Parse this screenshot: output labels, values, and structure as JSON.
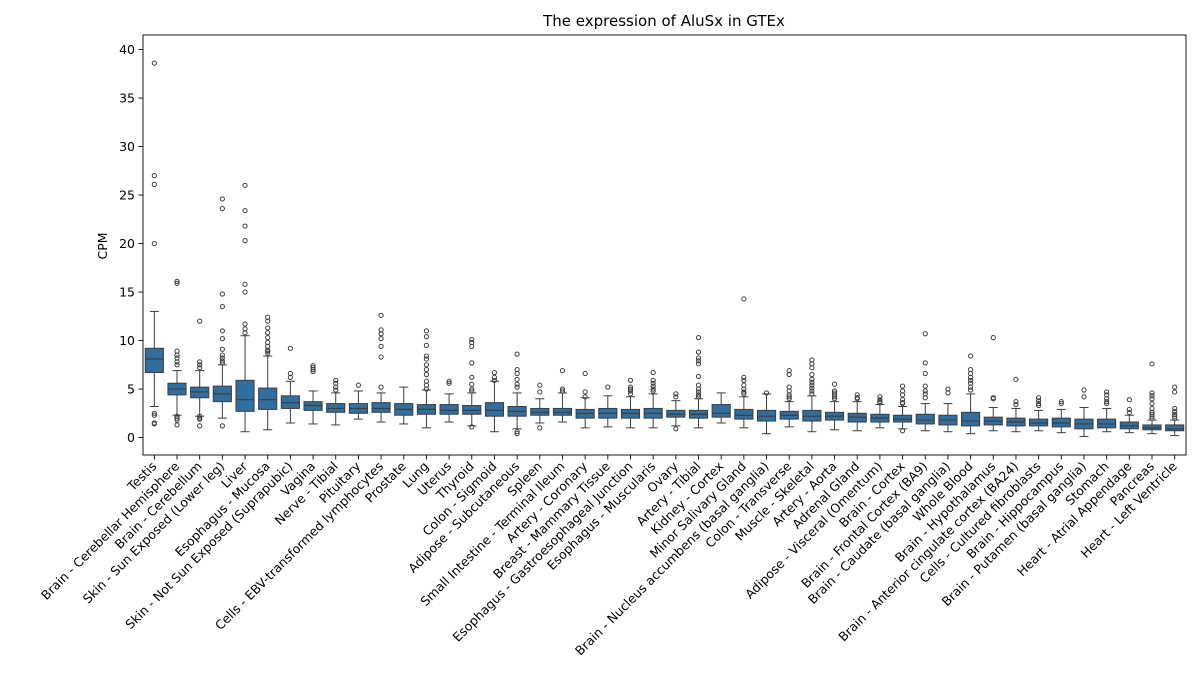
{
  "chart_data": {
    "type": "box",
    "title": "The expression of AluSx in GTEx",
    "xlabel": "",
    "ylabel": "CPM",
    "ylim": [
      -1.8,
      41.5
    ],
    "yticks": [
      0,
      5,
      10,
      15,
      20,
      25,
      30,
      35,
      40
    ],
    "box_color": "#2f6e9e",
    "categories": [
      "Testis",
      "Brain - Cerebellar Hemisphere",
      "Brain - Cerebellum",
      "Skin - Sun Exposed (Lower leg)",
      "Liver",
      "Esophagus - Mucosa",
      "Skin - Not Sun Exposed (Suprapubic)",
      "Vagina",
      "Nerve - Tibial",
      "Pituitary",
      "Cells - EBV-transformed lymphocytes",
      "Prostate",
      "Lung",
      "Uterus",
      "Thyroid",
      "Colon - Sigmoid",
      "Adipose - Subcutaneous",
      "Spleen",
      "Small Intestine - Terminal Ileum",
      "Artery - Coronary",
      "Breast - Mammary Tissue",
      "Esophagus - Gastroesophageal Junction",
      "Esophagus - Muscularis",
      "Ovary",
      "Artery - Tibial",
      "Kidney - Cortex",
      "Minor Salivary Gland",
      "Brain - Nucleus accumbens (basal ganglia)",
      "Colon - Transverse",
      "Muscle - Skeletal",
      "Artery - Aorta",
      "Adrenal Gland",
      "Adipose - Visceral (Omentum)",
      "Brain - Cortex",
      "Brain - Frontal Cortex (BA9)",
      "Brain - Caudate (basal ganglia)",
      "Whole Blood",
      "Brain - Hypothalamus",
      "Brain - Anterior cingulate cortex (BA24)",
      "Cells - Cultured fibroblasts",
      "Brain - Hippocampus",
      "Brain - Putamen (basal ganglia)",
      "Stomach",
      "Heart - Atrial Appendage",
      "Pancreas",
      "Heart - Left Ventricle"
    ],
    "boxes": [
      {
        "whislo": 3.2,
        "q1": 6.7,
        "med": 8.1,
        "q3": 9.2,
        "whishi": 13.0,
        "fliers": [
          38.6,
          27.0,
          26.1,
          20.0,
          2.5,
          2.3,
          1.5,
          1.4
        ]
      },
      {
        "whislo": 2.3,
        "q1": 4.4,
        "med": 5.0,
        "q3": 5.6,
        "whishi": 6.9,
        "fliers": [
          16.1,
          15.9,
          8.9,
          8.5,
          8.2,
          7.8,
          7.5,
          2.2,
          2.0,
          1.8,
          1.3
        ]
      },
      {
        "whislo": 2.2,
        "q1": 4.1,
        "med": 4.7,
        "q3": 5.2,
        "whishi": 6.9,
        "fliers": [
          12.0,
          7.8,
          7.5,
          7.2,
          2.2,
          2.0,
          1.9,
          1.2
        ]
      },
      {
        "whislo": 2.0,
        "q1": 3.7,
        "med": 4.5,
        "q3": 5.3,
        "whishi": 7.5,
        "fliers": [
          24.6,
          23.6,
          14.8,
          13.5,
          11.0,
          10.2,
          9.1,
          8.5,
          8.2,
          7.9,
          7.7,
          1.2
        ]
      },
      {
        "whislo": 0.6,
        "q1": 2.7,
        "med": 3.9,
        "q3": 5.9,
        "whishi": 10.5,
        "fliers": [
          26.0,
          23.4,
          21.8,
          20.3,
          15.8,
          15.0,
          11.7,
          11.2,
          10.8
        ]
      },
      {
        "whislo": 0.8,
        "q1": 2.9,
        "med": 3.9,
        "q3": 5.1,
        "whishi": 8.4,
        "fliers": [
          12.4,
          12.0,
          11.3,
          10.8,
          10.3,
          9.8,
          9.4,
          9.0,
          8.9,
          8.7
        ]
      },
      {
        "whislo": 1.5,
        "q1": 3.0,
        "med": 3.6,
        "q3": 4.3,
        "whishi": 5.8,
        "fliers": [
          9.2,
          6.6,
          6.2
        ]
      },
      {
        "whislo": 1.4,
        "q1": 2.8,
        "med": 3.3,
        "q3": 3.7,
        "whishi": 4.8,
        "fliers": [
          7.4,
          7.2,
          7.0,
          6.8
        ]
      },
      {
        "whislo": 1.3,
        "q1": 2.6,
        "med": 3.0,
        "q3": 3.5,
        "whishi": 4.6,
        "fliers": [
          5.9,
          5.6,
          5.2,
          4.9
        ]
      },
      {
        "whislo": 1.9,
        "q1": 2.5,
        "med": 3.0,
        "q3": 3.5,
        "whishi": 4.8,
        "fliers": [
          5.4
        ]
      },
      {
        "whislo": 1.6,
        "q1": 2.6,
        "med": 3.0,
        "q3": 3.6,
        "whishi": 4.6,
        "fliers": [
          12.6,
          11.1,
          10.7,
          10.2,
          9.4,
          8.3,
          5.2
        ]
      },
      {
        "whislo": 1.4,
        "q1": 2.3,
        "med": 2.9,
        "q3": 3.5,
        "whishi": 5.2,
        "fliers": []
      },
      {
        "whislo": 1.0,
        "q1": 2.4,
        "med": 2.9,
        "q3": 3.4,
        "whishi": 4.9,
        "fliers": [
          11.0,
          10.4,
          9.5,
          8.4,
          8.1,
          7.5,
          7.0,
          6.5,
          5.8,
          5.4,
          5.0
        ]
      },
      {
        "whislo": 1.6,
        "q1": 2.4,
        "med": 2.8,
        "q3": 3.4,
        "whishi": 4.5,
        "fliers": [
          5.8,
          5.6
        ]
      },
      {
        "whislo": 1.2,
        "q1": 2.4,
        "med": 2.8,
        "q3": 3.3,
        "whishi": 4.6,
        "fliers": [
          10.1,
          9.8,
          9.4,
          7.7,
          6.2,
          5.5,
          5.0,
          4.8,
          1.1
        ]
      },
      {
        "whislo": 0.6,
        "q1": 2.2,
        "med": 2.8,
        "q3": 3.6,
        "whishi": 5.8,
        "fliers": [
          6.7,
          6.2,
          5.9
        ]
      },
      {
        "whislo": 0.9,
        "q1": 2.2,
        "med": 2.7,
        "q3": 3.2,
        "whishi": 4.6,
        "fliers": [
          8.6,
          7.0,
          6.6,
          6.0,
          5.5,
          5.2,
          0.6,
          0.4
        ]
      },
      {
        "whislo": 1.5,
        "q1": 2.3,
        "med": 2.6,
        "q3": 3.0,
        "whishi": 4.0,
        "fliers": [
          5.4,
          4.7,
          1.0
        ]
      },
      {
        "whislo": 1.6,
        "q1": 2.3,
        "med": 2.6,
        "q3": 3.0,
        "whishi": 4.6,
        "fliers": [
          6.9,
          5.0,
          4.8
        ]
      },
      {
        "whislo": 1.0,
        "q1": 2.0,
        "med": 2.5,
        "q3": 2.9,
        "whishi": 4.1,
        "fliers": [
          6.6,
          4.7,
          4.2
        ]
      },
      {
        "whislo": 1.1,
        "q1": 2.0,
        "med": 2.5,
        "q3": 3.0,
        "whishi": 4.3,
        "fliers": [
          5.2
        ]
      },
      {
        "whislo": 1.0,
        "q1": 2.0,
        "med": 2.5,
        "q3": 2.9,
        "whishi": 4.2,
        "fliers": [
          5.9,
          5.2,
          5.0,
          4.8,
          4.5
        ]
      },
      {
        "whislo": 1.0,
        "q1": 2.0,
        "med": 2.5,
        "q3": 3.0,
        "whishi": 4.5,
        "fliers": [
          6.7,
          5.9,
          5.6,
          5.3,
          5.0,
          4.8
        ]
      },
      {
        "whislo": 1.2,
        "q1": 2.1,
        "med": 2.4,
        "q3": 2.8,
        "whishi": 3.8,
        "fliers": [
          4.5,
          4.2,
          0.9
        ]
      },
      {
        "whislo": 1.0,
        "q1": 2.0,
        "med": 2.4,
        "q3": 2.8,
        "whishi": 4.0,
        "fliers": [
          10.3,
          8.8,
          8.2,
          7.9,
          7.6,
          6.3,
          5.4,
          5.0,
          4.7,
          4.4,
          4.2
        ]
      },
      {
        "whislo": 1.5,
        "q1": 2.1,
        "med": 2.5,
        "q3": 3.4,
        "whishi": 4.6,
        "fliers": []
      },
      {
        "whislo": 1.0,
        "q1": 1.9,
        "med": 2.3,
        "q3": 2.9,
        "whishi": 4.2,
        "fliers": [
          14.3,
          6.2,
          5.9,
          5.4,
          5.0,
          4.7,
          4.5
        ]
      },
      {
        "whislo": 0.4,
        "q1": 1.7,
        "med": 2.2,
        "q3": 2.8,
        "whishi": 4.5,
        "fliers": [
          4.6
        ]
      },
      {
        "whislo": 1.1,
        "q1": 1.9,
        "med": 2.3,
        "q3": 2.7,
        "whishi": 3.7,
        "fliers": [
          6.9,
          6.5,
          5.2,
          4.8,
          4.4,
          4.2,
          4.0
        ]
      },
      {
        "whislo": 0.6,
        "q1": 1.7,
        "med": 2.2,
        "q3": 2.8,
        "whishi": 4.3,
        "fliers": [
          8.0,
          7.6,
          7.2,
          6.5,
          6.0,
          5.7,
          5.4,
          5.1,
          4.8,
          4.5
        ]
      },
      {
        "whislo": 0.8,
        "q1": 1.8,
        "med": 2.2,
        "q3": 2.6,
        "whishi": 3.7,
        "fliers": [
          5.5,
          4.8,
          4.6,
          4.4,
          4.2,
          4.0
        ]
      },
      {
        "whislo": 0.7,
        "q1": 1.6,
        "med": 2.1,
        "q3": 2.5,
        "whishi": 3.7,
        "fliers": [
          4.4,
          4.1,
          4.0
        ]
      },
      {
        "whislo": 1.0,
        "q1": 1.6,
        "med": 2.0,
        "q3": 2.4,
        "whishi": 3.4,
        "fliers": [
          4.2,
          3.9,
          3.7,
          3.6
        ]
      },
      {
        "whislo": 0.9,
        "q1": 1.6,
        "med": 1.9,
        "q3": 2.3,
        "whishi": 3.2,
        "fliers": [
          5.3,
          4.8,
          4.4,
          3.9,
          3.6,
          3.5,
          0.7
        ]
      },
      {
        "whislo": 0.7,
        "q1": 1.4,
        "med": 1.8,
        "q3": 2.4,
        "whishi": 3.5,
        "fliers": [
          10.7,
          7.7,
          6.6,
          5.3,
          4.8,
          4.5,
          4.1
        ]
      },
      {
        "whislo": 0.6,
        "q1": 1.3,
        "med": 1.8,
        "q3": 2.3,
        "whishi": 3.5,
        "fliers": [
          5.0,
          4.6
        ]
      },
      {
        "whislo": 0.4,
        "q1": 1.2,
        "med": 1.7,
        "q3": 2.6,
        "whishi": 4.5,
        "fliers": [
          8.4,
          7.0,
          6.6,
          6.2,
          5.9,
          5.6,
          5.2,
          4.9
        ]
      },
      {
        "whislo": 0.7,
        "q1": 1.3,
        "med": 1.7,
        "q3": 2.1,
        "whishi": 3.1,
        "fliers": [
          10.3,
          4.1,
          4.0
        ]
      },
      {
        "whislo": 0.6,
        "q1": 1.2,
        "med": 1.6,
        "q3": 2.0,
        "whishi": 3.0,
        "fliers": [
          6.0,
          3.7,
          3.4
        ]
      },
      {
        "whislo": 0.7,
        "q1": 1.2,
        "med": 1.5,
        "q3": 1.9,
        "whishi": 2.8,
        "fliers": [
          4.1,
          3.8,
          3.5,
          3.3
        ]
      },
      {
        "whislo": 0.5,
        "q1": 1.1,
        "med": 1.5,
        "q3": 2.0,
        "whishi": 2.9,
        "fliers": [
          3.7,
          3.5
        ]
      },
      {
        "whislo": 0.1,
        "q1": 0.9,
        "med": 1.4,
        "q3": 1.9,
        "whishi": 3.1,
        "fliers": [
          4.9,
          4.2
        ]
      },
      {
        "whislo": 0.6,
        "q1": 1.0,
        "med": 1.4,
        "q3": 1.9,
        "whishi": 3.0,
        "fliers": [
          4.7,
          4.4,
          4.0,
          3.7,
          3.5
        ]
      },
      {
        "whislo": 0.5,
        "q1": 0.9,
        "med": 1.2,
        "q3": 1.6,
        "whishi": 2.3,
        "fliers": [
          3.9,
          2.9,
          2.6
        ]
      },
      {
        "whislo": 0.4,
        "q1": 0.8,
        "med": 1.0,
        "q3": 1.3,
        "whishi": 1.8,
        "fliers": [
          7.6,
          4.6,
          4.3,
          4.0,
          3.5,
          3.0,
          2.6,
          2.4,
          2.2,
          2.0
        ]
      },
      {
        "whislo": 0.2,
        "q1": 0.7,
        "med": 0.9,
        "q3": 1.3,
        "whishi": 1.8,
        "fliers": [
          5.2,
          4.7,
          3.0,
          2.7,
          2.4,
          2.2,
          2.0
        ]
      }
    ]
  }
}
